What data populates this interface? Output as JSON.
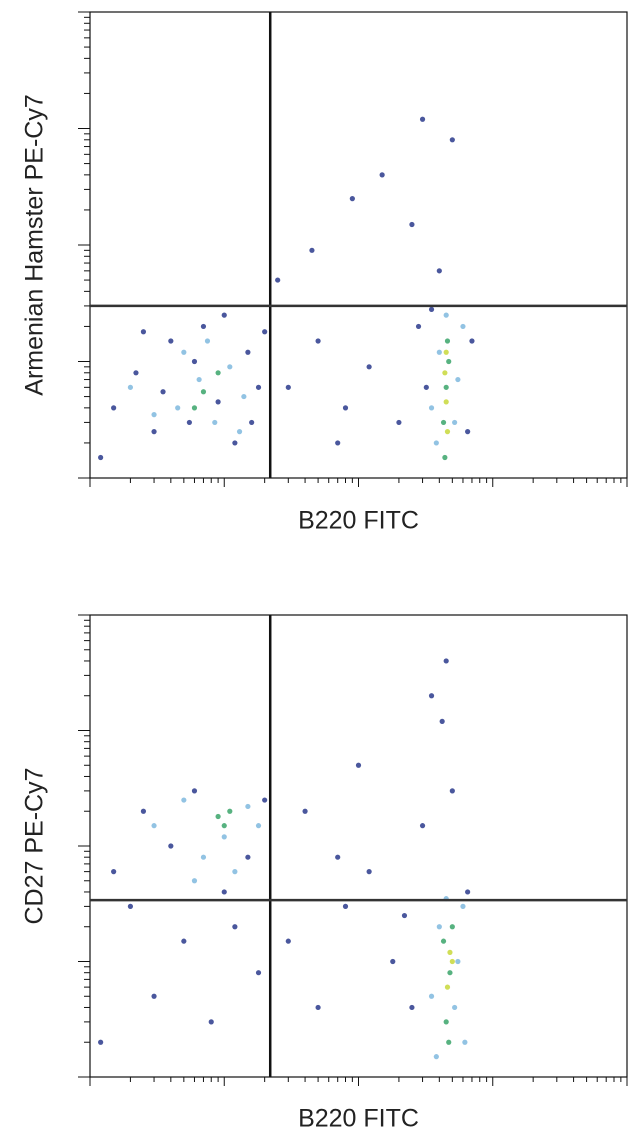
{
  "chart_data": [
    {
      "type": "scatter",
      "x_label": "B220 FITC",
      "y_label": "Armenian Hamster PE-Cy7",
      "log_x": true,
      "log_y": true,
      "xlim": [
        10,
        100000
      ],
      "ylim": [
        10,
        100000
      ],
      "xticks": [
        10,
        100,
        1000,
        10000,
        100000
      ],
      "yticks": [
        10,
        100,
        1000,
        10000,
        100000
      ],
      "gates": {
        "x": 220,
        "y": 300
      },
      "series": [
        {
          "color": "#2a3a8c",
          "x": [
            15,
            22,
            30,
            40,
            55,
            70,
            90,
            120,
            150,
            180,
            200,
            12,
            35,
            60,
            100,
            160,
            25,
            300,
            500,
            800,
            1200,
            2000,
            2800,
            3200,
            6500,
            7000,
            3500,
            450,
            900,
            1500,
            2500,
            5000,
            4000,
            250,
            3000,
            700
          ],
          "values": [
            40,
            80,
            25,
            150,
            30,
            200,
            45,
            20,
            120,
            60,
            180,
            15,
            55,
            100,
            250,
            30,
            180,
            60,
            150,
            40,
            90,
            30,
            200,
            60,
            25,
            150,
            280,
            900,
            2500,
            4000,
            1500,
            8000,
            600,
            500,
            12000,
            20
          ]
        },
        {
          "color": "#7fb8de",
          "x": [
            20,
            45,
            65,
            85,
            110,
            140,
            50,
            30,
            75,
            130,
            3500,
            4000,
            5500,
            6000,
            3800,
            5200,
            4500
          ],
          "values": [
            60,
            40,
            70,
            30,
            90,
            50,
            120,
            35,
            150,
            25,
            40,
            120,
            70,
            200,
            20,
            30,
            250
          ]
        },
        {
          "color": "#3aa56a",
          "x": [
            70,
            90,
            60,
            4300,
            4500,
            4700,
            4400,
            4600
          ],
          "values": [
            55,
            80,
            40,
            30,
            60,
            100,
            15,
            150
          ]
        },
        {
          "color": "#c8d83a",
          "x": [
            4500,
            4400,
            4600,
            4500
          ],
          "values": [
            45,
            80,
            25,
            120
          ]
        }
      ]
    },
    {
      "type": "scatter",
      "x_label": "B220 FITC",
      "y_label": "CD27 PE-Cy7",
      "log_x": true,
      "log_y": true,
      "xlim": [
        10,
        100000
      ],
      "ylim": [
        10,
        100000
      ],
      "xticks": [
        10,
        100,
        1000,
        10000,
        100000
      ],
      "yticks": [
        10,
        100,
        1000,
        10000,
        100000
      ],
      "gates": {
        "x": 220,
        "y": 340
      },
      "series": [
        {
          "color": "#2a3a8c",
          "x": [
            15,
            25,
            40,
            60,
            150,
            200,
            12,
            30,
            50,
            80,
            120,
            180,
            300,
            500,
            800,
            1200,
            1800,
            2500,
            400,
            1000,
            3500,
            4500,
            5000,
            3000,
            6500,
            700,
            20,
            100,
            4200,
            2200
          ],
          "values": [
            600,
            2000,
            1000,
            3000,
            800,
            2500,
            20,
            50,
            150,
            30,
            200,
            80,
            150,
            40,
            300,
            600,
            100,
            40,
            2000,
            5000,
            20000,
            40000,
            3000,
            1500,
            400,
            800,
            300,
            400,
            12000,
            250
          ]
        },
        {
          "color": "#7fb8de",
          "x": [
            30,
            50,
            70,
            100,
            150,
            180,
            60,
            120,
            3500,
            4000,
            5500,
            6000,
            3800,
            5200,
            4500,
            6200
          ],
          "values": [
            1500,
            2500,
            800,
            1200,
            2200,
            1500,
            500,
            600,
            50,
            200,
            100,
            300,
            15,
            40,
            350,
            20
          ]
        },
        {
          "color": "#3aa56a",
          "x": [
            90,
            110,
            100,
            4500,
            4800,
            4300,
            4700,
            5000
          ],
          "values": [
            1800,
            2000,
            1500,
            30,
            80,
            150,
            20,
            200
          ]
        },
        {
          "color": "#c8d83a",
          "x": [
            4800,
            4600,
            5000
          ],
          "values": [
            120,
            60,
            100
          ]
        }
      ]
    }
  ]
}
